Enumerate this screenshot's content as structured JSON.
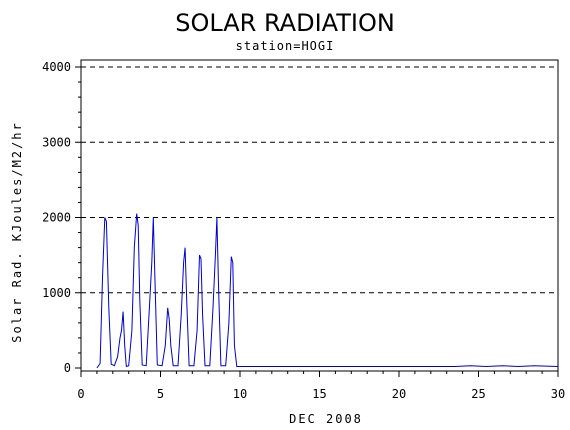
{
  "chart_data": {
    "type": "line",
    "title": "SOLAR RADIATION",
    "subtitle": "station=HOGI",
    "xlabel": "DEC 2008",
    "ylabel": "Solar Rad. KJoules/M2/hr",
    "xlim": [
      0,
      30
    ],
    "ylim": [
      0,
      4000
    ],
    "x_ticks": [
      0,
      5,
      10,
      15,
      20,
      25,
      30
    ],
    "y_ticks": [
      0,
      1000,
      2000,
      3000,
      4000
    ],
    "grid": "horizontal dashed",
    "series_color": "#0000cc",
    "series": [
      {
        "x": [
          1.0,
          1.2,
          1.35,
          1.5,
          1.6,
          1.75,
          1.9,
          2.1,
          2.3,
          2.45,
          2.55,
          2.65,
          2.75,
          2.85,
          3.0,
          3.2,
          3.35,
          3.5,
          3.6,
          3.7,
          3.85,
          4.1,
          4.3,
          4.45,
          4.55,
          4.65,
          4.8,
          5.1,
          5.3,
          5.45,
          5.55,
          5.65,
          5.8,
          6.1,
          6.3,
          6.45,
          6.55,
          6.65,
          6.8,
          7.1,
          7.3,
          7.45,
          7.55,
          7.65,
          7.8,
          8.1,
          8.3,
          8.45,
          8.55,
          8.65,
          8.8,
          9.1,
          9.3,
          9.45,
          9.55,
          9.65,
          9.8,
          10.5,
          12,
          14,
          16,
          18,
          20,
          22,
          23.5,
          24.5,
          25.5,
          26.5,
          27.5,
          28.5,
          30
        ],
        "y": [
          0,
          60,
          1200,
          2000,
          1950,
          800,
          50,
          30,
          150,
          400,
          500,
          750,
          300,
          20,
          30,
          500,
          1600,
          2050,
          1900,
          900,
          40,
          30,
          800,
          1400,
          2000,
          1200,
          40,
          30,
          300,
          800,
          650,
          300,
          30,
          30,
          700,
          1400,
          1600,
          900,
          30,
          30,
          500,
          1500,
          1450,
          700,
          30,
          30,
          800,
          1500,
          2000,
          1100,
          30,
          30,
          600,
          1480,
          1400,
          300,
          20,
          20,
          20,
          20,
          20,
          20,
          20,
          20,
          20,
          30,
          20,
          30,
          20,
          30,
          20
        ]
      }
    ]
  }
}
